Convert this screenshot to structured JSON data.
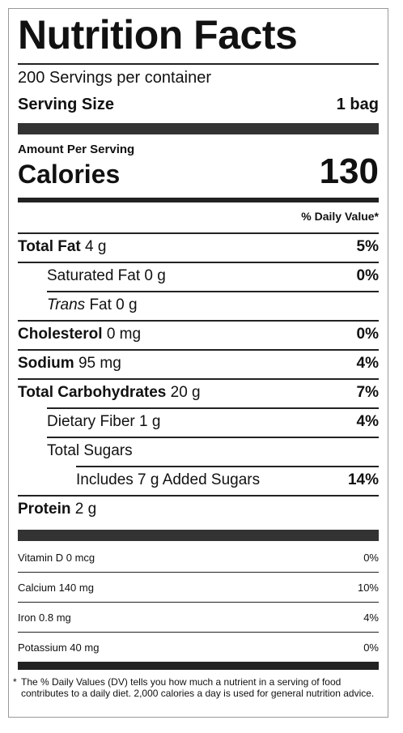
{
  "title": "Nutrition Facts",
  "servings_per_container": "200 Servings per container",
  "serving_size": {
    "label": "Serving Size",
    "value": "1 bag"
  },
  "amount_per_serving": "Amount Per Serving",
  "calories": {
    "label": "Calories",
    "value": "130"
  },
  "daily_value_header": "% Daily Value*",
  "nutrients": {
    "total_fat": {
      "name": "Total Fat",
      "amount": "4 g",
      "dv": "5%"
    },
    "saturated_fat": {
      "name": "Saturated Fat 0 g",
      "dv": "0%"
    },
    "trans_fat": {
      "italic": "Trans",
      "rest": "Fat 0 g"
    },
    "cholesterol": {
      "name": "Cholesterol",
      "amount": "0 mg",
      "dv": "0%"
    },
    "sodium": {
      "name": "Sodium",
      "amount": "95 mg",
      "dv": "4%"
    },
    "total_carbs": {
      "name": "Total Carbohydrates",
      "amount": "20 g",
      "dv": "7%"
    },
    "dietary_fiber": {
      "name": "Dietary Fiber 1 g",
      "dv": "4%"
    },
    "total_sugars": {
      "name": "Total Sugars"
    },
    "added_sugars": {
      "name": "Includes 7 g Added Sugars",
      "dv": "14%"
    },
    "protein": {
      "name": "Protein",
      "amount": "2 g"
    }
  },
  "vitamins": [
    {
      "name": "Vitamin D 0 mcg",
      "dv": "0%"
    },
    {
      "name": "Calcium 140 mg",
      "dv": "10%"
    },
    {
      "name": "Iron 0.8 mg",
      "dv": "4%"
    },
    {
      "name": "Potassium 40 mg",
      "dv": "0%"
    }
  ],
  "footnote": {
    "asterisk": "*",
    "text": "The % Daily Values (DV) tells you how much a nutrient in a serving of food contributes to a daily diet. 2,000 calories a day is used for general nutrition advice."
  }
}
